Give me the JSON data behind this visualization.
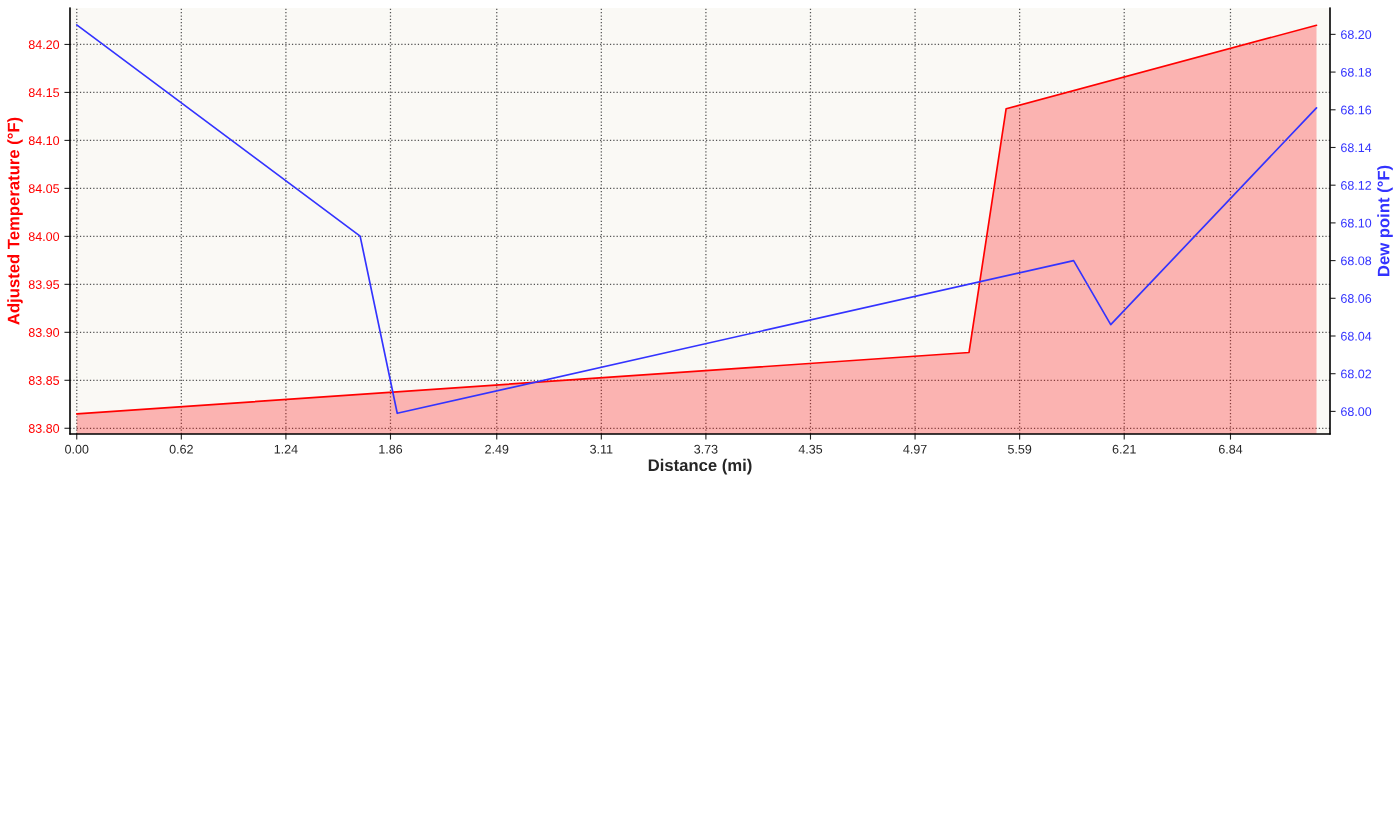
{
  "chart_data": {
    "type": "area",
    "xlabel": "Distance (mi)",
    "ylabel": "Adjusted Temperature (°F)",
    "y2label": "Dew point (°F)",
    "series": [
      {
        "color": "#ff0000",
        "x": [
          0,
          5.29,
          5.51,
          7.35
        ],
        "values": [
          83.815,
          83.879,
          84.133,
          84.22
        ]
      },
      {
        "type": "line",
        "axis": "y2",
        "color": "#3333ff",
        "x": [
          0,
          1.68,
          1.9,
          5.91,
          6.13,
          7.35
        ],
        "values": [
          68.205,
          68.093,
          67.999,
          68.08,
          68.046,
          68.161
        ]
      }
    ],
    "xlim": [
      -0.04,
      7.43
    ],
    "xticks": [
      {
        "value": 0,
        "label": "0.00"
      },
      0.62,
      1.24,
      1.86,
      2.49,
      3.11,
      3.73,
      4.35,
      4.97,
      5.59,
      6.21,
      6.84
    ],
    "ylim": [
      83.794,
      84.238
    ],
    "yticks": [
      {
        "value": 83.8,
        "label": "83.80"
      },
      83.85,
      {
        "value": 83.9,
        "label": "83.90"
      },
      83.95,
      {
        "value": 84.0,
        "label": "84.00"
      },
      84.05,
      {
        "value": 84.1,
        "label": "84.10"
      },
      84.15,
      {
        "value": 84.2,
        "label": "84.20"
      }
    ],
    "y2lim": [
      67.988,
      68.214
    ],
    "y2ticks": [
      {
        "value": 68.0,
        "label": "68.00"
      },
      68.02,
      68.04,
      68.06,
      68.08,
      {
        "value": 68.1,
        "label": "68.10"
      },
      68.12,
      68.14,
      68.16,
      68.18,
      {
        "value": 68.2,
        "label": "68.20"
      }
    ],
    "grid": true,
    "line_style": "solid"
  }
}
